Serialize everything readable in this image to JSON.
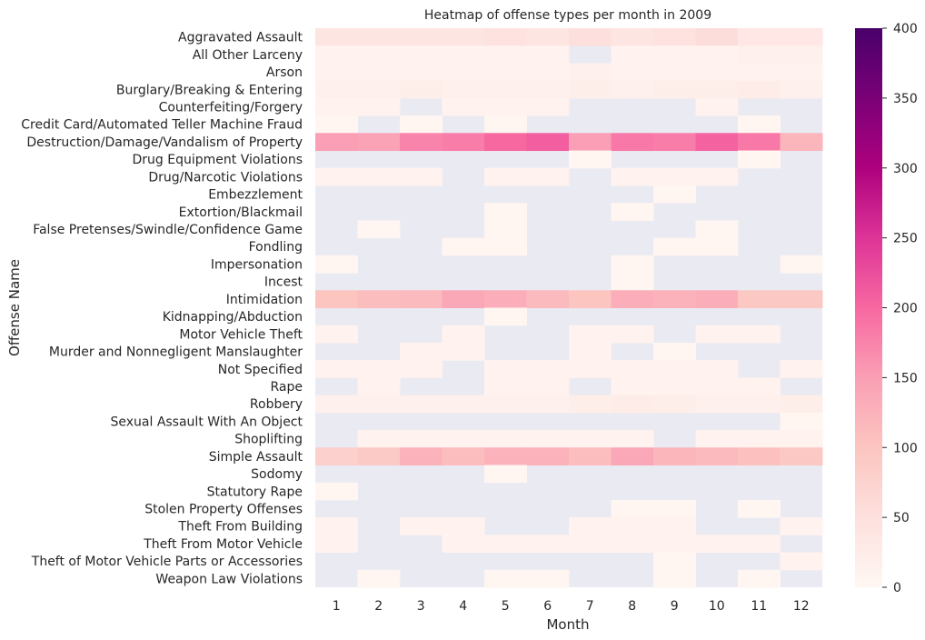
{
  "chart_data": {
    "type": "heatmap",
    "title": "Heatmap of offense types per month in 2009",
    "xlabel": "Month",
    "ylabel": "Offense Name",
    "x": [
      "1",
      "2",
      "3",
      "4",
      "5",
      "6",
      "7",
      "8",
      "9",
      "10",
      "11",
      "12"
    ],
    "y": [
      "Aggravated Assault",
      "All Other Larceny",
      "Arson",
      "Burglary/Breaking & Entering",
      "Counterfeiting/Forgery",
      "Credit Card/Automated Teller Machine Fraud",
      "Destruction/Damage/Vandalism of Property",
      "Drug Equipment Violations",
      "Drug/Narcotic Violations",
      "Embezzlement",
      "Extortion/Blackmail",
      "False Pretenses/Swindle/Confidence Game",
      "Fondling",
      "Impersonation",
      "Incest",
      "Intimidation",
      "Kidnapping/Abduction",
      "Motor Vehicle Theft",
      "Murder and Nonnegligent Manslaughter",
      "Not Specified",
      "Rape",
      "Robbery",
      "Sexual Assault With An Object",
      "Shoplifting",
      "Simple Assault",
      "Sodomy",
      "Statutory Rape",
      "Stolen Property Offenses",
      "Theft From Building",
      "Theft From Motor Vehicle",
      "Theft of Motor Vehicle Parts or Accessories",
      "Weapon Law Violations"
    ],
    "values": [
      [
        40,
        40,
        40,
        40,
        45,
        40,
        50,
        40,
        45,
        55,
        35,
        35
      ],
      [
        10,
        10,
        10,
        10,
        10,
        10,
        null,
        10,
        10,
        10,
        15,
        15
      ],
      [
        10,
        10,
        10,
        10,
        10,
        10,
        15,
        10,
        10,
        10,
        10,
        10
      ],
      [
        15,
        15,
        20,
        15,
        15,
        15,
        20,
        15,
        20,
        20,
        25,
        15
      ],
      [
        10,
        10,
        null,
        10,
        10,
        10,
        null,
        null,
        null,
        10,
        null,
        null
      ],
      [
        5,
        null,
        5,
        null,
        5,
        null,
        null,
        null,
        null,
        null,
        5,
        null
      ],
      [
        150,
        145,
        175,
        180,
        200,
        210,
        150,
        185,
        180,
        205,
        185,
        120
      ],
      [
        null,
        null,
        null,
        null,
        null,
        null,
        5,
        null,
        null,
        null,
        5,
        null
      ],
      [
        10,
        10,
        10,
        null,
        10,
        10,
        null,
        10,
        10,
        10,
        null,
        null
      ],
      [
        null,
        null,
        null,
        null,
        null,
        null,
        null,
        null,
        5,
        null,
        null,
        null
      ],
      [
        null,
        null,
        null,
        null,
        5,
        null,
        null,
        5,
        null,
        null,
        null,
        null
      ],
      [
        null,
        5,
        null,
        null,
        5,
        null,
        null,
        null,
        null,
        5,
        null,
        null
      ],
      [
        null,
        null,
        null,
        5,
        5,
        null,
        null,
        null,
        5,
        5,
        null,
        null
      ],
      [
        5,
        null,
        null,
        null,
        null,
        null,
        null,
        5,
        null,
        null,
        null,
        5
      ],
      [
        null,
        null,
        null,
        null,
        null,
        null,
        null,
        5,
        null,
        null,
        null,
        null
      ],
      [
        100,
        110,
        115,
        140,
        130,
        115,
        100,
        130,
        125,
        130,
        95,
        95
      ],
      [
        null,
        null,
        null,
        null,
        5,
        null,
        null,
        null,
        null,
        null,
        null,
        null
      ],
      [
        10,
        null,
        null,
        10,
        null,
        null,
        10,
        10,
        null,
        10,
        10,
        null
      ],
      [
        null,
        null,
        10,
        10,
        null,
        null,
        10,
        null,
        5,
        null,
        null,
        null
      ],
      [
        10,
        10,
        10,
        null,
        10,
        10,
        10,
        10,
        10,
        10,
        null,
        10
      ],
      [
        null,
        10,
        null,
        null,
        10,
        10,
        null,
        10,
        10,
        10,
        10,
        null
      ],
      [
        15,
        15,
        15,
        15,
        15,
        15,
        20,
        25,
        20,
        15,
        15,
        20
      ],
      [
        null,
        null,
        null,
        null,
        null,
        null,
        null,
        null,
        null,
        null,
        null,
        5
      ],
      [
        null,
        10,
        10,
        10,
        10,
        10,
        10,
        10,
        null,
        10,
        10,
        10
      ],
      [
        80,
        90,
        125,
        110,
        125,
        125,
        110,
        140,
        120,
        115,
        105,
        95
      ],
      [
        null,
        null,
        null,
        null,
        5,
        null,
        null,
        null,
        null,
        null,
        null,
        null
      ],
      [
        5,
        null,
        null,
        null,
        null,
        null,
        null,
        null,
        null,
        null,
        null,
        null
      ],
      [
        null,
        null,
        null,
        null,
        null,
        null,
        null,
        5,
        5,
        null,
        5,
        null
      ],
      [
        10,
        null,
        10,
        10,
        null,
        null,
        10,
        10,
        10,
        null,
        null,
        10
      ],
      [
        10,
        null,
        null,
        10,
        10,
        10,
        10,
        10,
        10,
        10,
        10,
        null
      ],
      [
        null,
        null,
        null,
        null,
        null,
        null,
        null,
        null,
        5,
        null,
        null,
        10
      ],
      [
        null,
        5,
        null,
        null,
        5,
        5,
        null,
        null,
        5,
        null,
        5,
        null
      ]
    ],
    "missing_color": "#eaeaf2",
    "colormap": "RdPu",
    "vmin": 0,
    "vmax": 400,
    "colorbar_ticks": [
      "0",
      "50",
      "100",
      "150",
      "200",
      "250",
      "300",
      "350",
      "400"
    ]
  }
}
